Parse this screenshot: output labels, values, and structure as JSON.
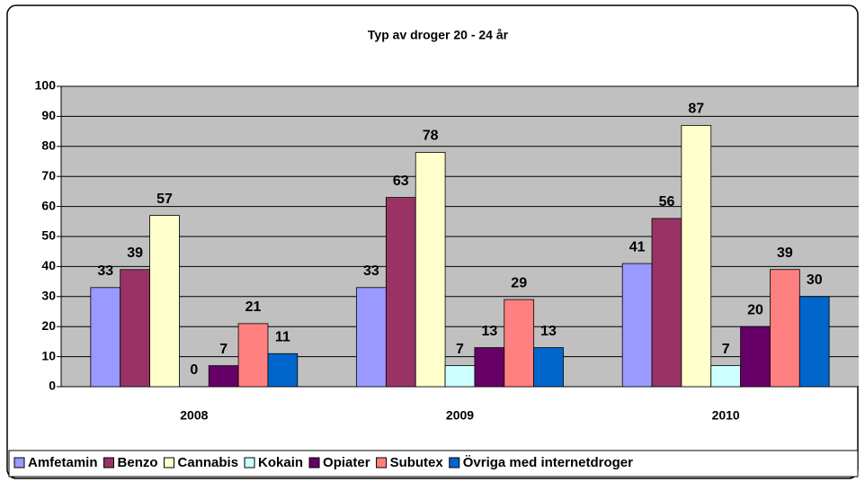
{
  "chart_data": {
    "type": "bar",
    "title": "Typ av droger 20 - 24 år",
    "categories": [
      "2008",
      "2009",
      "2010"
    ],
    "series": [
      {
        "name": "Amfetamin",
        "color": "#9999ff",
        "values": [
          33,
          33,
          41
        ]
      },
      {
        "name": "Benzo",
        "color": "#993366",
        "values": [
          39,
          63,
          56
        ]
      },
      {
        "name": "Cannabis",
        "color": "#ffffcc",
        "values": [
          57,
          78,
          87
        ]
      },
      {
        "name": "Kokain",
        "color": "#ccffff",
        "values": [
          0,
          7,
          7
        ]
      },
      {
        "name": "Opiater",
        "color": "#660066",
        "values": [
          7,
          13,
          20
        ]
      },
      {
        "name": "Subutex",
        "color": "#ff8080",
        "values": [
          21,
          29,
          39
        ]
      },
      {
        "name": "Övriga med internetdroger",
        "color": "#0066cc",
        "values": [
          11,
          13,
          30
        ]
      }
    ],
    "ylim": [
      0,
      100
    ],
    "yticks": [
      0,
      10,
      20,
      30,
      40,
      50,
      60,
      70,
      80,
      90,
      100
    ],
    "grid": true,
    "legend": "bottom",
    "plot_background": "#c0c0c0"
  }
}
